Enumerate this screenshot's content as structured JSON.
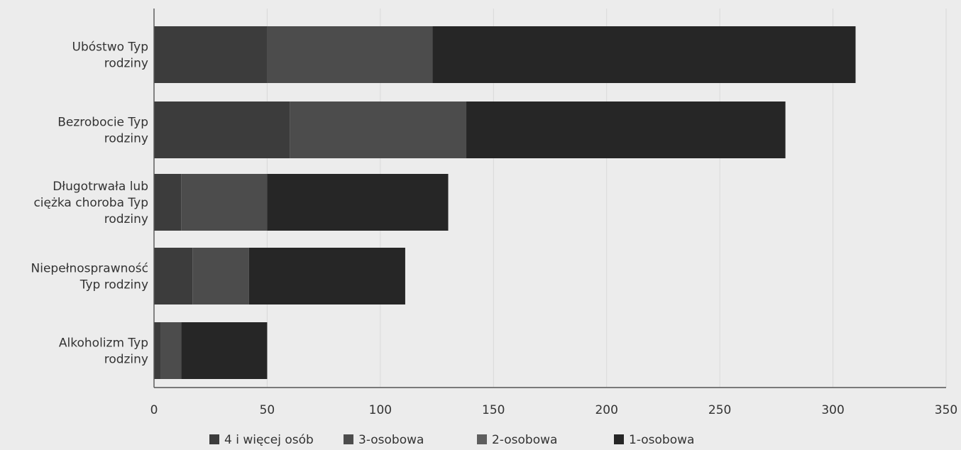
{
  "chart_data": {
    "type": "bar",
    "orientation": "horizontal",
    "stacked": true,
    "title": "",
    "xlabel": "",
    "ylabel": "",
    "xlim": [
      0,
      350
    ],
    "xticks": [
      0,
      50,
      100,
      150,
      200,
      250,
      300,
      350
    ],
    "grid": true,
    "legend_position": "bottom",
    "categories": [
      "Ubóstwo Typ rodziny",
      "Bezrobocie Typ rodziny",
      "Długotrwała lub ciężka choroba Typ rodziny",
      "Niepełnosprawność Typ rodziny",
      "Alkoholizm Typ rodziny"
    ],
    "category_lines": [
      [
        "Ubóstwo Typ",
        "rodziny"
      ],
      [
        "Bezrobocie Typ",
        "rodziny"
      ],
      [
        "Długotrwała lub",
        "ciężka choroba Typ",
        "rodziny"
      ],
      [
        "Niepełnosprawność",
        "Typ rodziny"
      ],
      [
        "Alkoholizm Typ",
        "rodziny"
      ]
    ],
    "series": [
      {
        "name": "4 i więcej osób",
        "color": "#3c3c3c",
        "values": [
          50,
          60,
          12,
          17,
          3
        ]
      },
      {
        "name": "3-osobowa",
        "color": "#4c4c4c",
        "values": [
          73,
          78,
          38,
          25,
          9
        ]
      },
      {
        "name": "2-osobowa",
        "color": "#5e5e5e",
        "values": [
          0,
          0,
          0,
          0,
          0
        ]
      },
      {
        "name": "1-osobowa",
        "color": "#262626",
        "values": [
          187,
          141,
          80,
          69,
          38
        ]
      }
    ]
  }
}
